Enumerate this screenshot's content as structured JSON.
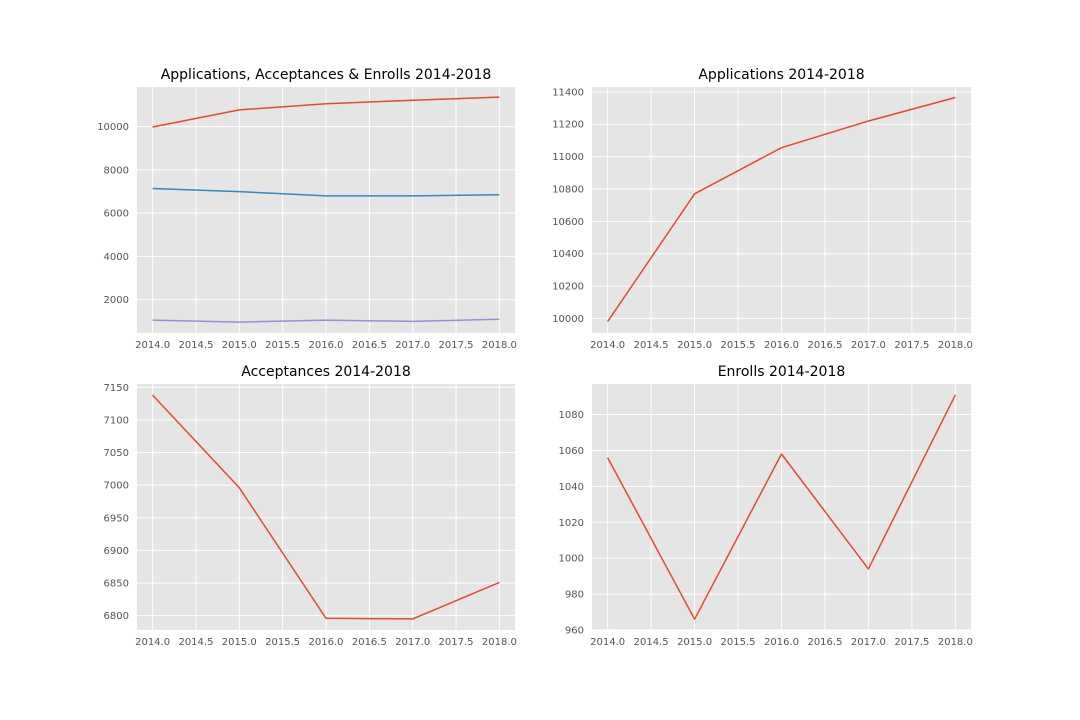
{
  "chart_data": [
    {
      "type": "line",
      "title": "Applications, Acceptances & Enrolls 2014-2018",
      "xlabel": "",
      "ylabel": "",
      "x": [
        2014,
        2015,
        2016,
        2017,
        2018
      ],
      "xlim": [
        2013.82,
        2018.18
      ],
      "ylim": [
        460,
        11830
      ],
      "xticks": [
        "2014.0",
        "2014.5",
        "2015.0",
        "2015.5",
        "2016.0",
        "2016.5",
        "2017.0",
        "2017.5",
        "2018.0"
      ],
      "yticks": [
        "2000",
        "4000",
        "6000",
        "8000",
        "10000"
      ],
      "grid": true,
      "series": [
        {
          "values": [
            9980,
            10770,
            11055,
            11220,
            11365
          ],
          "color": "#E24A33"
        },
        {
          "values": [
            7138,
            6996,
            6796,
            6795,
            6851
          ],
          "color": "#348ABD"
        },
        {
          "values": [
            1056,
            966,
            1058,
            994,
            1091
          ],
          "color": "#988ED5"
        }
      ]
    },
    {
      "type": "line",
      "title": "Applications 2014-2018",
      "xlabel": "",
      "ylabel": "",
      "x": [
        2014,
        2015,
        2016,
        2017,
        2018
      ],
      "xlim": [
        2013.82,
        2018.18
      ],
      "ylim": [
        9910,
        11430
      ],
      "xticks": [
        "2014.0",
        "2014.5",
        "2015.0",
        "2015.5",
        "2016.0",
        "2016.5",
        "2017.0",
        "2017.5",
        "2018.0"
      ],
      "yticks": [
        "10000",
        "10200",
        "10400",
        "10600",
        "10800",
        "11000",
        "11200",
        "11400"
      ],
      "grid": true,
      "series": [
        {
          "values": [
            9980,
            10770,
            11055,
            11220,
            11365
          ],
          "color": "#E24A33"
        }
      ]
    },
    {
      "type": "line",
      "title": "Acceptances 2014-2018",
      "xlabel": "",
      "ylabel": "",
      "x": [
        2014,
        2015,
        2016,
        2017,
        2018
      ],
      "xlim": [
        2013.82,
        2018.18
      ],
      "ylim": [
        6778,
        7155
      ],
      "xticks": [
        "2014.0",
        "2014.5",
        "2015.0",
        "2015.5",
        "2016.0",
        "2016.5",
        "2017.0",
        "2017.5",
        "2018.0"
      ],
      "yticks": [
        "6800",
        "6850",
        "6900",
        "6950",
        "7000",
        "7050",
        "7100",
        "7150"
      ],
      "grid": true,
      "series": [
        {
          "values": [
            7138,
            6996,
            6796,
            6795,
            6851
          ],
          "color": "#E24A33"
        }
      ]
    },
    {
      "type": "line",
      "title": "Enrolls 2014-2018",
      "xlabel": "",
      "ylabel": "",
      "x": [
        2014,
        2015,
        2016,
        2017,
        2018
      ],
      "xlim": [
        2013.82,
        2018.18
      ],
      "ylim": [
        960,
        1097
      ],
      "xticks": [
        "2014.0",
        "2014.5",
        "2015.0",
        "2015.5",
        "2016.0",
        "2016.5",
        "2017.0",
        "2017.5",
        "2018.0"
      ],
      "yticks": [
        "960",
        "980",
        "1000",
        "1020",
        "1040",
        "1060",
        "1080"
      ],
      "grid": true,
      "series": [
        {
          "values": [
            1056,
            966,
            1058,
            994,
            1091
          ],
          "color": "#E24A33"
        }
      ]
    }
  ]
}
